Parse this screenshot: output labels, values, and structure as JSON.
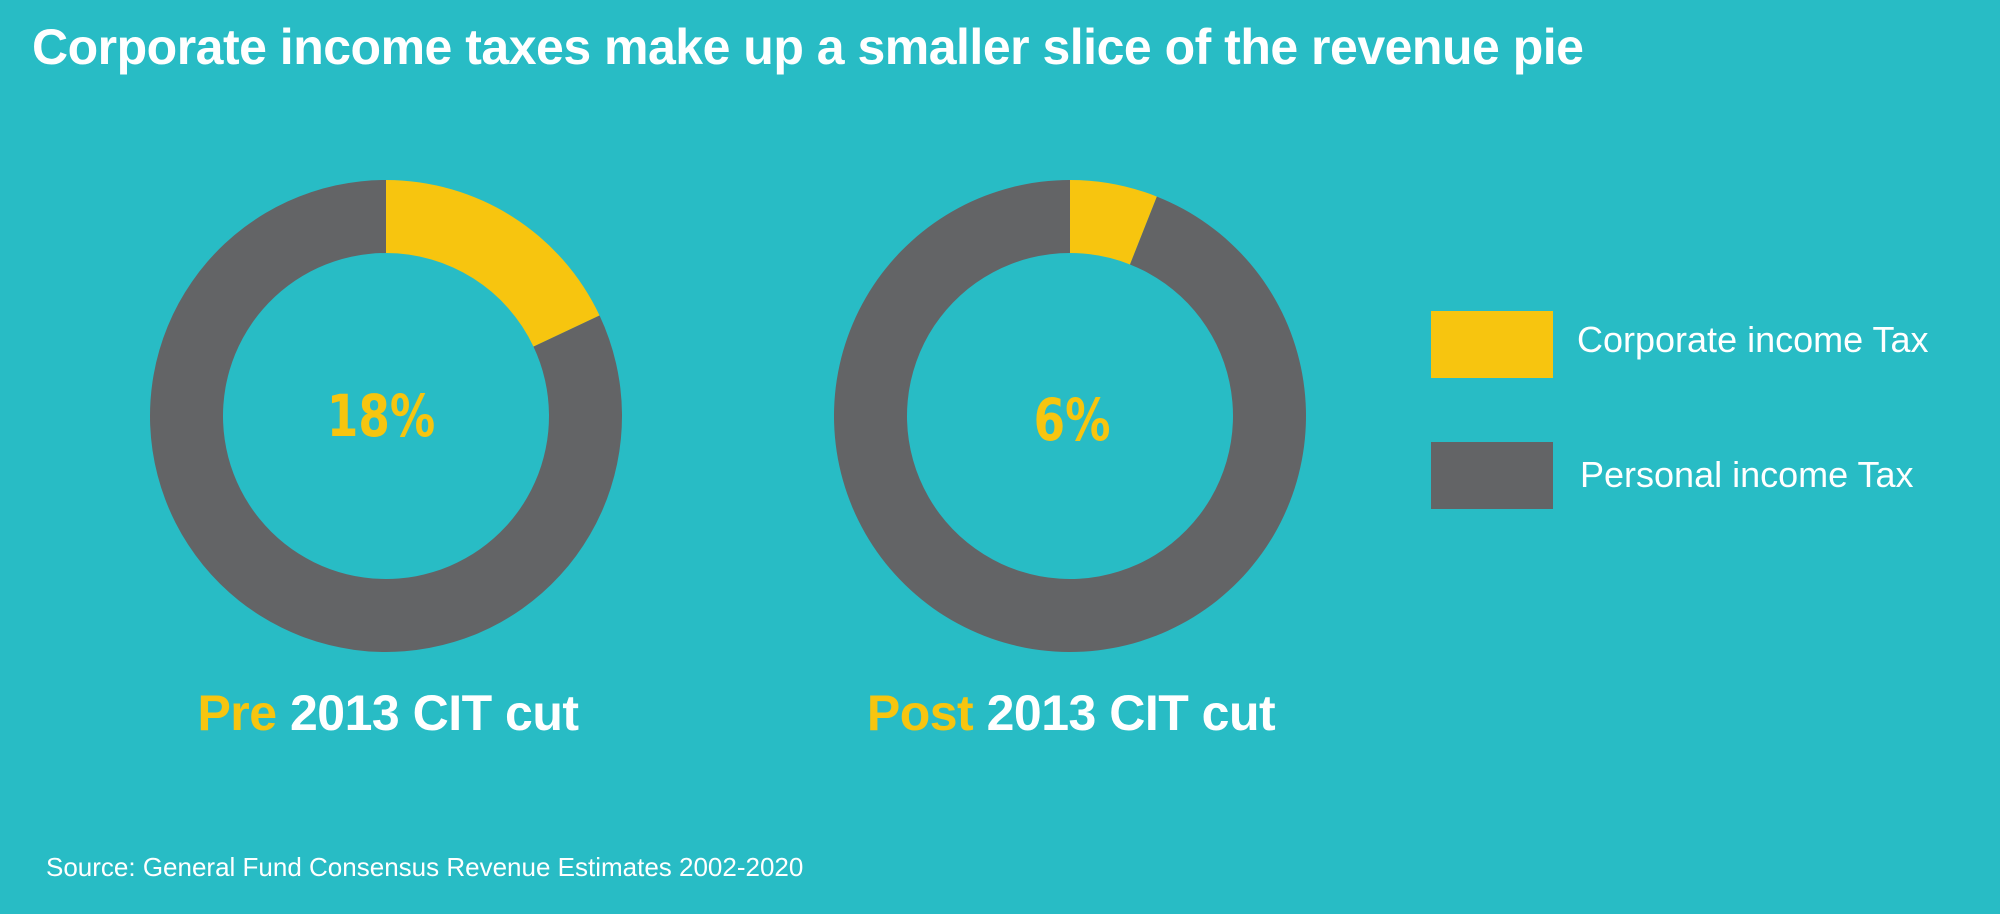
{
  "title": "Corporate income taxes make up a smaller slice of the revenue pie",
  "colors": {
    "background": "#28bcc5",
    "corporate": "#f7c50f",
    "personal": "#636466",
    "text": "#ffffff"
  },
  "chart_data": [
    {
      "type": "pie",
      "variant": "donut",
      "center_label": "18%",
      "caption_highlight": "Pre",
      "caption_rest": " 2013 CIT cut",
      "slices": [
        {
          "name": "Corporate income Tax",
          "value": 18
        },
        {
          "name": "Personal income Tax",
          "value": 82
        }
      ]
    },
    {
      "type": "pie",
      "variant": "donut",
      "center_label": "6%",
      "caption_highlight": "Post",
      "caption_rest": " 2013 CIT cut",
      "slices": [
        {
          "name": "Corporate income Tax",
          "value": 6
        },
        {
          "name": "Personal income Tax",
          "value": 94
        }
      ]
    }
  ],
  "legend": [
    {
      "label": "Corporate income Tax",
      "color": "#f7c50f"
    },
    {
      "label": "Personal income Tax",
      "color": "#636466"
    }
  ],
  "source": "Source: General Fund Consensus Revenue Estimates 2002-2020"
}
